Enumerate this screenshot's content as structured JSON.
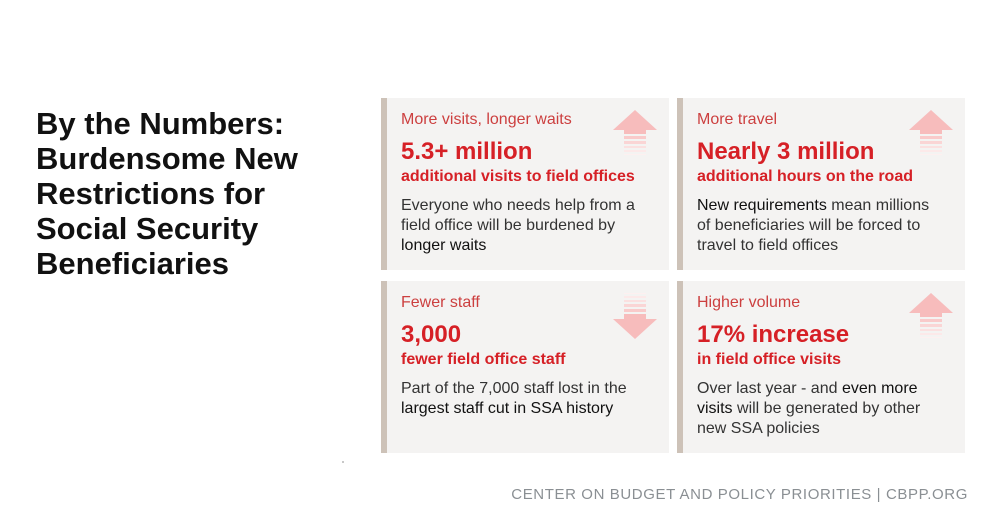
{
  "title": "By the Numbers: Burdensome New Restrictions for Social Security Beneficiaries",
  "colors": {
    "accent": "#d62026",
    "card_bg": "#f4f3f2",
    "bar": "#cdc2b8"
  },
  "cards": [
    {
      "heading": "More visits, longer waits",
      "figure": "5.3+ million",
      "subhead": "additional visits to field offices",
      "desc": [
        "Everyone who needs help from a field office will be burdened by ",
        "longer waits",
        ""
      ],
      "icon": "arrow-up-icon"
    },
    {
      "heading": "More travel",
      "figure": "Nearly 3 million",
      "subhead": "additional hours on the road",
      "desc": [
        "",
        "New requirements",
        " mean millions of beneficiaries will be forced to travel to field offices"
      ],
      "icon": "arrow-up-icon"
    },
    {
      "heading": "Fewer staff",
      "figure": "3,000",
      "subhead": "fewer field office staff",
      "desc": [
        "Part of the 7,000 staff lost in the ",
        "largest staff cut in SSA history",
        ""
      ],
      "icon": "arrow-down-icon"
    },
    {
      "heading": "Higher volume",
      "figure": "17% increase",
      "subhead": "in field office visits",
      "desc": [
        "Over last year - and ",
        "even more visits",
        " will be generated by other new SSA policies"
      ],
      "icon": "arrow-up-icon"
    }
  ],
  "footer": "CENTER ON BUDGET AND POLICY PRIORITIES | CBPP.ORG"
}
